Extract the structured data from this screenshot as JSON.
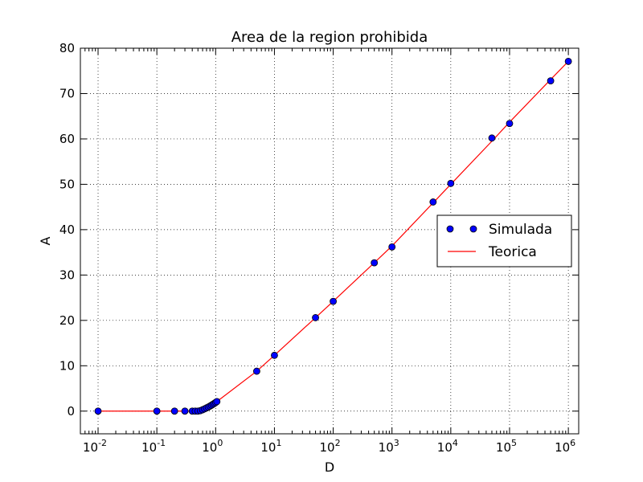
{
  "chart_data": {
    "type": "scatter",
    "title": "Area de la region prohibida",
    "xlabel": "D",
    "ylabel": "A",
    "xscale": "log",
    "xlim": [
      0.005,
      1500000
    ],
    "ylim": [
      -5,
      80
    ],
    "grid": true,
    "legend": "right",
    "x_ticks": [
      {
        "base": "10",
        "exp": "-2",
        "value": 0.01
      },
      {
        "base": "10",
        "exp": "-1",
        "value": 0.1
      },
      {
        "base": "10",
        "exp": "0",
        "value": 1
      },
      {
        "base": "10",
        "exp": "1",
        "value": 10
      },
      {
        "base": "10",
        "exp": "2",
        "value": 100
      },
      {
        "base": "10",
        "exp": "3",
        "value": 1000
      },
      {
        "base": "10",
        "exp": "4",
        "value": 10000
      },
      {
        "base": "10",
        "exp": "5",
        "value": 100000
      },
      {
        "base": "10",
        "exp": "6",
        "value": 1000000
      }
    ],
    "y_ticks": [
      "0",
      "10",
      "20",
      "30",
      "40",
      "50",
      "60",
      "70",
      "80"
    ],
    "series": [
      {
        "name": "Simulada",
        "style": "markers",
        "color": "#0000ff",
        "x": [
          0.01,
          0.1,
          0.2,
          0.3,
          0.4,
          0.45,
          0.5,
          0.55,
          0.6,
          0.65,
          0.7,
          0.75,
          0.8,
          0.85,
          0.9,
          0.95,
          1.0,
          1.05,
          5,
          10,
          50,
          100,
          500,
          1000,
          5000,
          10000,
          50000,
          100000,
          500000,
          1000000
        ],
        "y": [
          0,
          0,
          0,
          0,
          0,
          0,
          0,
          0.1,
          0.3,
          0.5,
          0.7,
          0.9,
          1.1,
          1.3,
          1.5,
          1.7,
          1.9,
          2.1,
          8.8,
          12.3,
          20.6,
          24.2,
          32.7,
          36.2,
          46.1,
          50.2,
          60.2,
          63.4,
          72.8,
          77.1
        ]
      },
      {
        "name": "Teorica",
        "style": "line",
        "color": "#ff0000",
        "x": [
          0.01,
          0.1,
          0.3,
          0.4,
          0.5,
          0.6,
          0.7,
          0.8,
          0.9,
          1.0,
          1.1,
          5,
          10,
          50,
          100,
          500,
          1000,
          5000,
          10000,
          50000,
          100000,
          500000,
          1000000
        ],
        "y": [
          0,
          0,
          0,
          0,
          0,
          0.3,
          0.7,
          1.1,
          1.5,
          1.9,
          2.3,
          8.8,
          12.3,
          20.6,
          24.2,
          32.7,
          36.4,
          45.9,
          50.0,
          59.5,
          63.7,
          73.1,
          77.1
        ]
      }
    ]
  }
}
